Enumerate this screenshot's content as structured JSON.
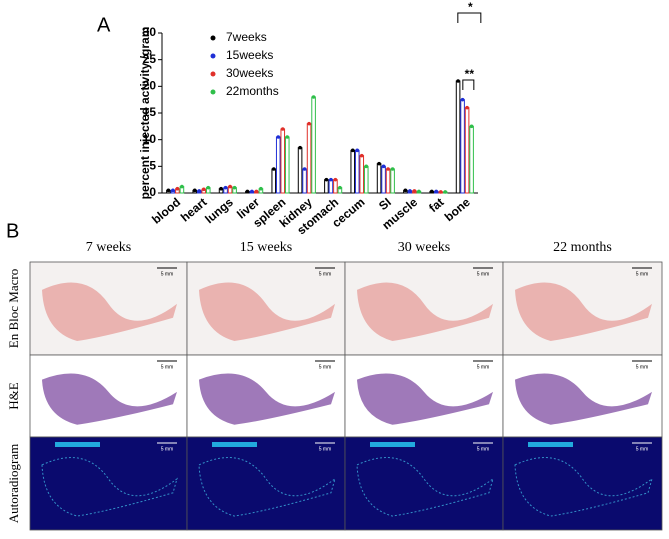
{
  "panel_labels": [
    "A",
    "B"
  ],
  "chart_data": {
    "type": "bar",
    "y_label": "percent injected activity /gram",
    "categories": [
      "blood",
      "heart",
      "lungs",
      "liver",
      "spleen",
      "kidney",
      "stomach",
      "cecum",
      "SI",
      "muscle",
      "fat",
      "bone"
    ],
    "series": [
      {
        "name": "7weeks",
        "color": "#000000",
        "values": [
          0.5,
          0.5,
          0.8,
          0.3,
          4.5,
          8.5,
          2.5,
          8,
          5.5,
          0.5,
          0.3,
          21
        ]
      },
      {
        "name": "15weeks",
        "color": "#1f2fd6",
        "values": [
          0.5,
          0.4,
          1.0,
          0.3,
          10.5,
          4.5,
          2.5,
          8,
          5,
          0.4,
          0.3,
          17.5
        ]
      },
      {
        "name": "30weeks",
        "color": "#e0302a",
        "values": [
          0.8,
          0.7,
          1.2,
          0.3,
          12,
          13,
          2.5,
          7,
          4.5,
          0.4,
          0.2,
          16
        ]
      },
      {
        "name": "22months",
        "color": "#2fbf4a",
        "values": [
          1.2,
          1.0,
          1.0,
          0.8,
          10.5,
          18,
          1.0,
          5,
          4.5,
          0.3,
          0.2,
          12.5
        ]
      }
    ],
    "ylim": [
      0,
      30
    ],
    "yticks": [
      0,
      5,
      10,
      15,
      20,
      25,
      30
    ],
    "annotations": [
      "*",
      "**"
    ]
  },
  "figure_b": {
    "columns": [
      "7 weeks",
      "15 weeks",
      "30 weeks",
      "22 months"
    ],
    "rows": [
      "En Bloc Macro",
      "H&E",
      "Autoradiogram"
    ],
    "scale_bar": "5 mm"
  }
}
